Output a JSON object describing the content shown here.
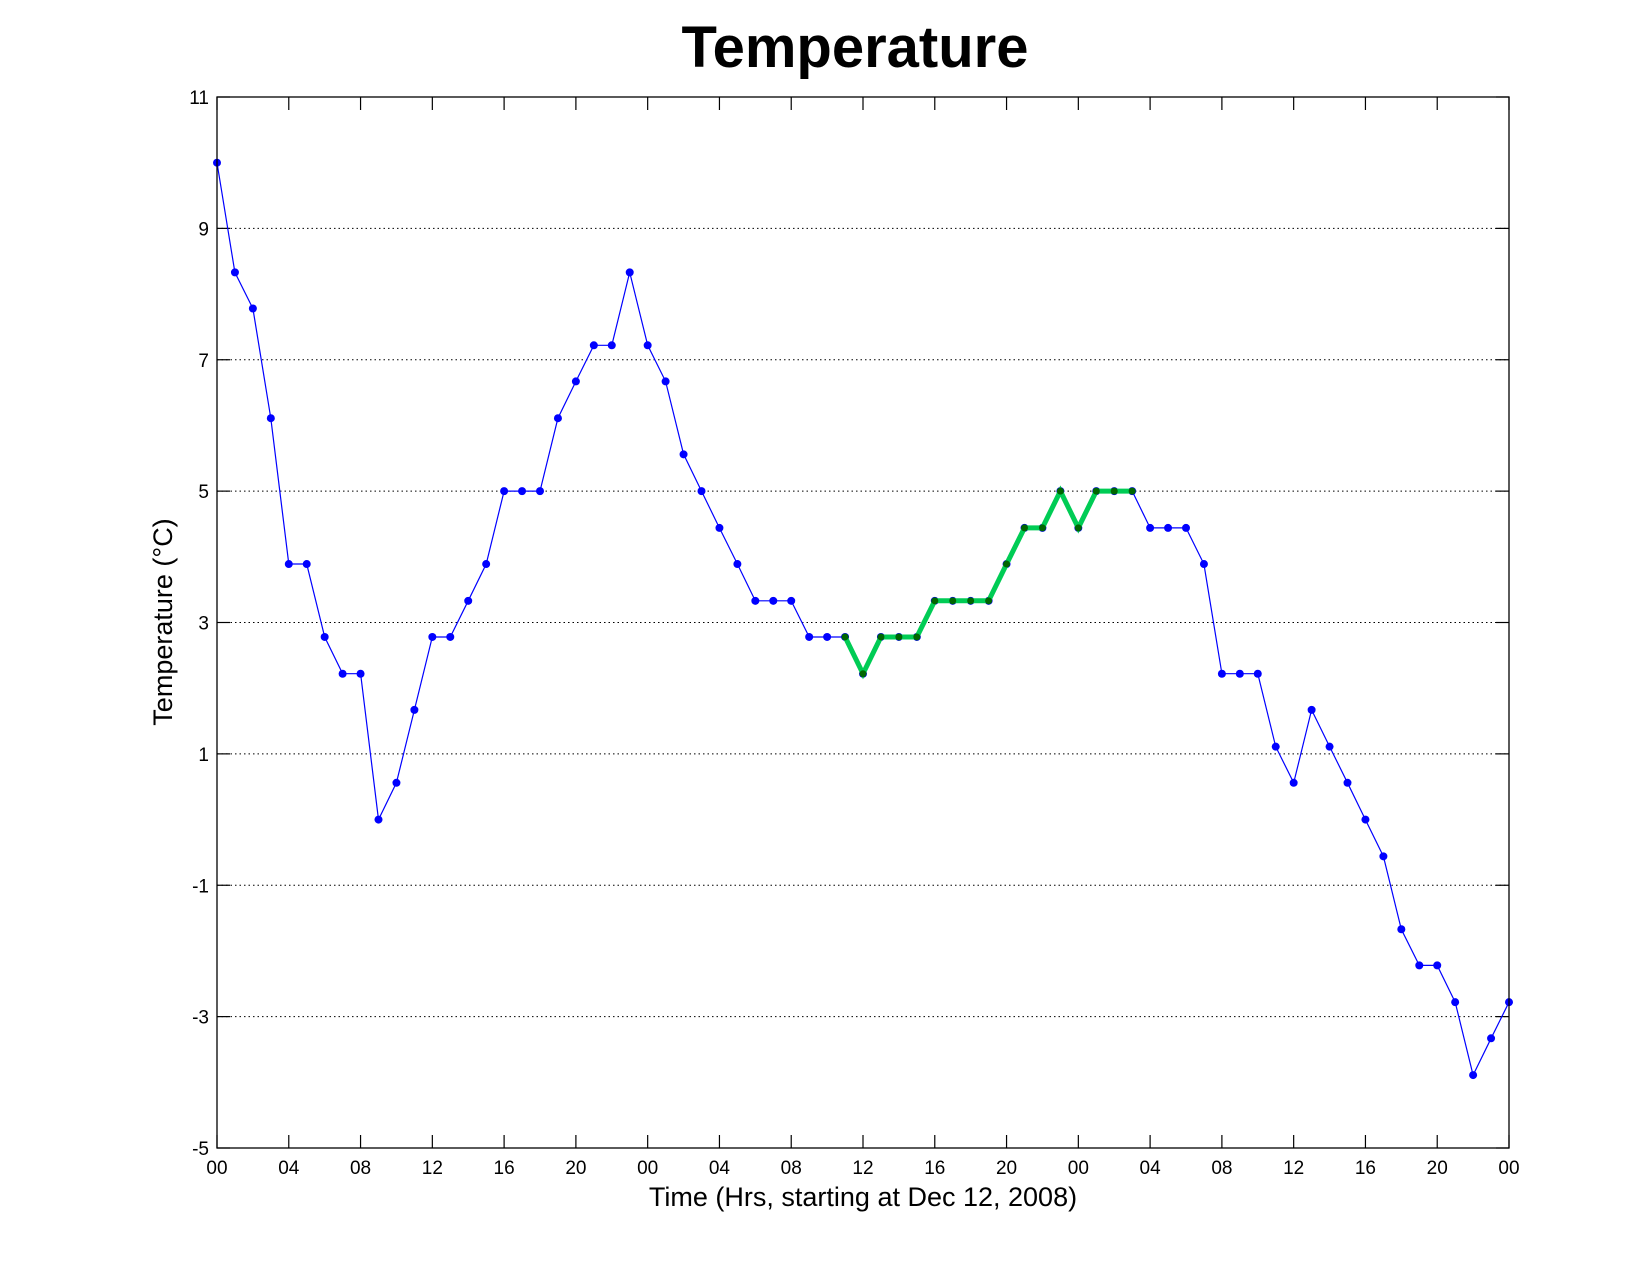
{
  "chart_data": {
    "type": "line",
    "title": "Temperature",
    "xlabel": "Time (Hrs, starting at Dec 12, 2008)",
    "ylabel_prefix": "Temperature (",
    "ylabel_unit": "°C",
    "ylabel_suffix": ")",
    "x_unit": "hours",
    "xlim": [
      0,
      72
    ],
    "ylim": [
      -5,
      11
    ],
    "yticks": [
      -5,
      -3,
      -1,
      1,
      3,
      5,
      7,
      9,
      11
    ],
    "xticks": [
      0,
      4,
      8,
      12,
      16,
      20,
      24,
      28,
      32,
      36,
      40,
      44,
      48,
      52,
      56,
      60,
      64,
      68,
      72
    ],
    "xtick_labels": [
      "00",
      "04",
      "08",
      "12",
      "16",
      "20",
      "00",
      "04",
      "08",
      "12",
      "16",
      "20",
      "00",
      "04",
      "08",
      "12",
      "16",
      "20",
      "00"
    ],
    "grid": "horizontal dotted",
    "series": [
      {
        "color": "#0000ff",
        "x": [
          0,
          1,
          2,
          3,
          4,
          5,
          6,
          7,
          8,
          9,
          10,
          11,
          12,
          13,
          14,
          15,
          16,
          17,
          18,
          19,
          20,
          21,
          22,
          23,
          24,
          25,
          26,
          27,
          28,
          29,
          30,
          31,
          32,
          33,
          34,
          35,
          36,
          37,
          38,
          39,
          40,
          41,
          42,
          43,
          44,
          45,
          46,
          47,
          48,
          49,
          50,
          51,
          52,
          53,
          54,
          55,
          56,
          57,
          58,
          59,
          60,
          61,
          62,
          63,
          64,
          65,
          66,
          67,
          68,
          69,
          70,
          71,
          72
        ],
        "values": [
          10.0,
          8.33,
          7.78,
          6.11,
          3.89,
          3.89,
          2.78,
          2.22,
          2.22,
          0.0,
          0.56,
          1.67,
          2.78,
          2.78,
          3.33,
          3.89,
          5.0,
          5.0,
          5.0,
          6.11,
          6.67,
          7.22,
          7.22,
          8.33,
          7.22,
          6.67,
          5.56,
          5.0,
          4.44,
          3.89,
          3.33,
          3.33,
          3.33,
          2.78,
          2.78,
          2.78,
          2.22,
          2.78,
          2.78,
          2.78,
          3.33,
          3.33,
          3.33,
          3.33,
          3.89,
          4.44,
          4.44,
          5.0,
          4.44,
          5.0,
          5.0,
          5.0,
          4.44,
          4.44,
          4.44,
          3.89,
          2.22,
          2.22,
          2.22,
          1.11,
          0.56,
          1.67,
          1.11,
          0.56,
          0.0,
          -0.56,
          -1.67,
          -2.22,
          -2.22,
          -2.78,
          -3.89,
          -3.33,
          -2.78
        ]
      },
      {
        "color": "#00cc55",
        "marker_color": "#006600",
        "x": [
          35,
          36,
          37,
          38,
          39,
          40,
          41,
          42,
          43,
          44,
          45,
          46,
          47,
          48,
          49,
          50,
          51
        ],
        "values": [
          2.78,
          2.22,
          2.78,
          2.78,
          2.78,
          3.33,
          3.33,
          3.33,
          3.33,
          3.89,
          4.44,
          4.44,
          5.0,
          4.44,
          5.0,
          5.0,
          5.0
        ]
      }
    ]
  }
}
